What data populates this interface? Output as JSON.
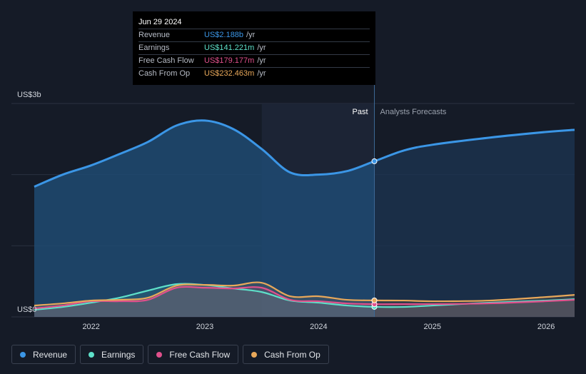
{
  "tooltip": {
    "date": "Jun 29 2024",
    "rows": [
      {
        "label": "Revenue",
        "value": "US$2.188b",
        "unit": "/yr",
        "color": "#3b96e6"
      },
      {
        "label": "Earnings",
        "value": "US$141.221m",
        "unit": "/yr",
        "color": "#5ee0c9"
      },
      {
        "label": "Free Cash Flow",
        "value": "US$179.177m",
        "unit": "/yr",
        "color": "#e0508c"
      },
      {
        "label": "Cash From Op",
        "value": "US$232.463m",
        "unit": "/yr",
        "color": "#e8a85a"
      }
    ]
  },
  "labels": {
    "past": "Past",
    "forecast": "Analysts Forecasts"
  },
  "legend": [
    {
      "label": "Revenue",
      "color": "#3b96e6"
    },
    {
      "label": "Earnings",
      "color": "#5ee0c9"
    },
    {
      "label": "Free Cash Flow",
      "color": "#e0508c"
    },
    {
      "label": "Cash From Op",
      "color": "#e8a85a"
    }
  ],
  "chart_data": {
    "type": "area",
    "x_unit": "year",
    "xlim": [
      2021.5,
      2026.25
    ],
    "ylim": [
      0,
      3
    ],
    "y_unit": "US$ billions",
    "ytick_labels": [
      {
        "value": 3,
        "label": "US$3b"
      },
      {
        "value": 0,
        "label": "US$0"
      }
    ],
    "xticks": [
      {
        "value": 2022,
        "label": "2022"
      },
      {
        "value": 2023,
        "label": "2023"
      },
      {
        "value": 2024,
        "label": "2024"
      },
      {
        "value": 2025,
        "label": "2025"
      },
      {
        "value": 2026,
        "label": "2026"
      }
    ],
    "past_end": 2024.49,
    "shaded_region": [
      2023.5,
      2024.49
    ],
    "series": [
      {
        "name": "Revenue",
        "color": "#3b96e6",
        "points": [
          [
            2021.5,
            1.83
          ],
          [
            2021.75,
            2.0
          ],
          [
            2022.0,
            2.13
          ],
          [
            2022.25,
            2.29
          ],
          [
            2022.5,
            2.46
          ],
          [
            2022.75,
            2.69
          ],
          [
            2023.0,
            2.76
          ],
          [
            2023.25,
            2.64
          ],
          [
            2023.5,
            2.36
          ],
          [
            2023.75,
            2.03
          ],
          [
            2024.0,
            2.0
          ],
          [
            2024.25,
            2.05
          ],
          [
            2024.49,
            2.188
          ],
          [
            2024.75,
            2.34
          ],
          [
            2025.0,
            2.42
          ],
          [
            2025.5,
            2.52
          ],
          [
            2026.0,
            2.6
          ],
          [
            2026.25,
            2.63
          ]
        ]
      },
      {
        "name": "Earnings",
        "color": "#5ee0c9",
        "points": [
          [
            2021.5,
            0.1
          ],
          [
            2021.75,
            0.14
          ],
          [
            2022.0,
            0.2
          ],
          [
            2022.25,
            0.27
          ],
          [
            2022.5,
            0.37
          ],
          [
            2022.75,
            0.46
          ],
          [
            2023.0,
            0.45
          ],
          [
            2023.25,
            0.4
          ],
          [
            2023.5,
            0.35
          ],
          [
            2023.75,
            0.23
          ],
          [
            2024.0,
            0.2
          ],
          [
            2024.25,
            0.16
          ],
          [
            2024.49,
            0.141
          ],
          [
            2024.75,
            0.14
          ],
          [
            2025.0,
            0.16
          ],
          [
            2025.5,
            0.2
          ],
          [
            2026.0,
            0.23
          ],
          [
            2026.25,
            0.25
          ]
        ]
      },
      {
        "name": "Free Cash Flow",
        "color": "#e0508c",
        "points": [
          [
            2021.5,
            0.12
          ],
          [
            2021.75,
            0.16
          ],
          [
            2022.0,
            0.22
          ],
          [
            2022.25,
            0.22
          ],
          [
            2022.5,
            0.24
          ],
          [
            2022.75,
            0.41
          ],
          [
            2023.0,
            0.41
          ],
          [
            2023.25,
            0.4
          ],
          [
            2023.5,
            0.41
          ],
          [
            2023.75,
            0.24
          ],
          [
            2024.0,
            0.22
          ],
          [
            2024.25,
            0.19
          ],
          [
            2024.49,
            0.179
          ],
          [
            2024.75,
            0.18
          ],
          [
            2025.0,
            0.18
          ],
          [
            2025.5,
            0.19
          ],
          [
            2026.0,
            0.22
          ],
          [
            2026.25,
            0.24
          ]
        ]
      },
      {
        "name": "Cash From Op",
        "color": "#e8a85a",
        "points": [
          [
            2021.5,
            0.16
          ],
          [
            2021.75,
            0.19
          ],
          [
            2022.0,
            0.23
          ],
          [
            2022.25,
            0.24
          ],
          [
            2022.5,
            0.27
          ],
          [
            2022.75,
            0.44
          ],
          [
            2023.0,
            0.45
          ],
          [
            2023.25,
            0.44
          ],
          [
            2023.5,
            0.48
          ],
          [
            2023.75,
            0.29
          ],
          [
            2024.0,
            0.29
          ],
          [
            2024.25,
            0.24
          ],
          [
            2024.49,
            0.232
          ],
          [
            2024.75,
            0.23
          ],
          [
            2025.0,
            0.22
          ],
          [
            2025.5,
            0.23
          ],
          [
            2026.0,
            0.28
          ],
          [
            2026.25,
            0.31
          ]
        ]
      }
    ]
  }
}
